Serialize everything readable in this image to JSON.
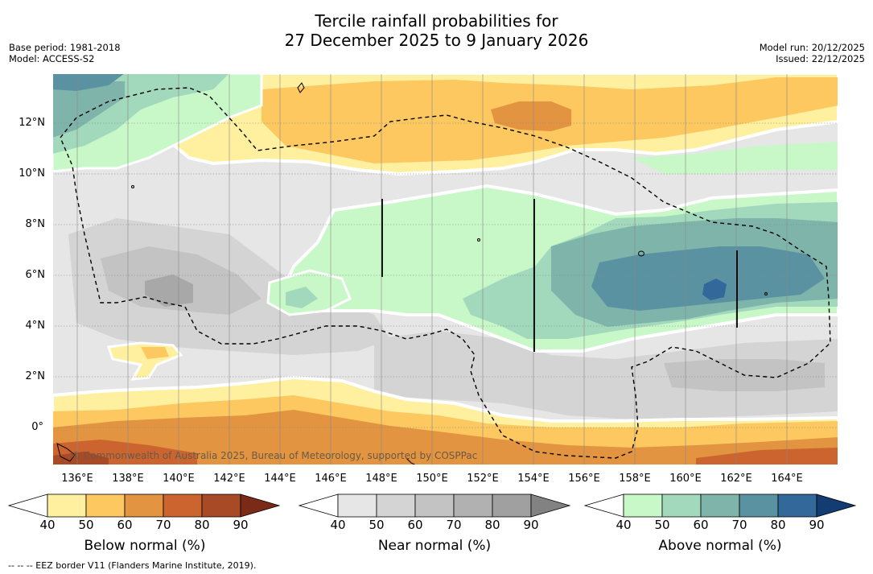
{
  "title": {
    "line1": "Tercile rainfall probabilities for",
    "line2": "27 December 2025 to 9 January 2026"
  },
  "meta": {
    "base_period": "Base period: 1981-2018",
    "model": "Model: ACCESS-S2",
    "model_run": "Model run: 20/12/2025",
    "issued": "Issued: 22/12/2025"
  },
  "map": {
    "lat_labels": [
      "12°N",
      "10°N",
      "8°N",
      "6°N",
      "4°N",
      "2°N",
      "0°"
    ],
    "lon_labels": [
      "136°E",
      "138°E",
      "140°E",
      "142°E",
      "144°E",
      "146°E",
      "148°E",
      "150°E",
      "152°E",
      "154°E",
      "156°E",
      "158°E",
      "160°E",
      "162°E",
      "164°E"
    ],
    "credit": "© Commonwealth of Australia 2025, Bureau of Meteorology, supported by COSPPac"
  },
  "colorbars": [
    {
      "name": "below",
      "title": "Below normal (%)",
      "ticks": [
        "40",
        "50",
        "60",
        "70",
        "80",
        "90"
      ],
      "colors": [
        "#fff0a0",
        "#fdc860",
        "#e29440",
        "#cc6430",
        "#a84a26",
        "#7c2a18"
      ]
    },
    {
      "name": "near",
      "title": "Near normal (%)",
      "ticks": [
        "40",
        "50",
        "60",
        "70",
        "80",
        "90"
      ],
      "colors": [
        "#e6e6e6",
        "#d4d4d4",
        "#c3c3c3",
        "#b1b1b1",
        "#a0a0a0",
        "#828282"
      ]
    },
    {
      "name": "above",
      "title": "Above normal (%)",
      "ticks": [
        "40",
        "50",
        "60",
        "70",
        "80",
        "90"
      ],
      "colors": [
        "#c8f8c8",
        "#a2d8bc",
        "#7eb4aa",
        "#5a92a2",
        "#32689a",
        "#123c72"
      ]
    }
  ],
  "footer": "--  --  -- EEZ border V11 (Flanders Marine Institute, 2019)."
}
